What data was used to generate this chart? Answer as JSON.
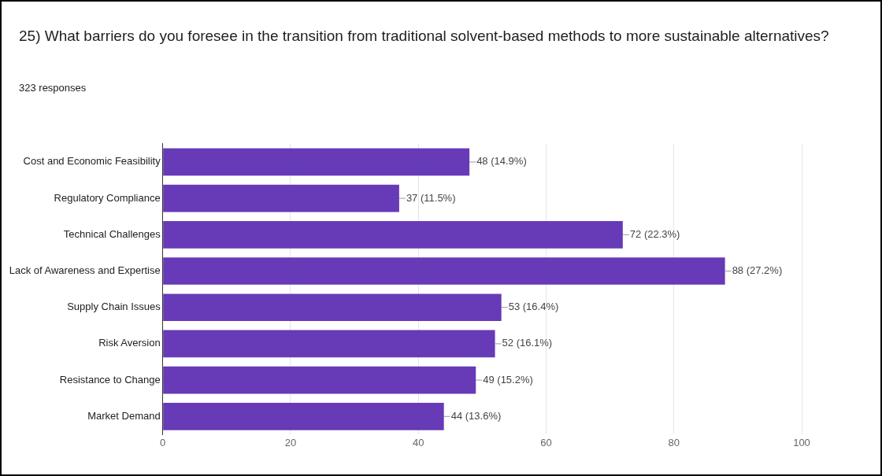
{
  "chart_data": {
    "type": "bar",
    "orientation": "horizontal",
    "title": "25) What barriers do you foresee in the transition from traditional solvent-based methods to more sustainable alternatives?",
    "subtitle": "323 responses",
    "categories": [
      "Cost and Economic Feasibility",
      "Regulatory Compliance",
      "Technical Challenges",
      "Lack of Awareness and Expertise",
      "Supply Chain Issues",
      "Risk Aversion",
      "Resistance to Change",
      "Market Demand"
    ],
    "values": [
      48,
      37,
      72,
      88,
      53,
      52,
      49,
      44
    ],
    "value_labels": [
      "48 (14.9%)",
      "37 (11.5%)",
      "72 (22.3%)",
      "88 (27.2%)",
      "53 (16.4%)",
      "52 (16.1%)",
      "49 (15.2%)",
      "44 (13.6%)"
    ],
    "color": "#673ab7",
    "xlim": [
      0,
      100
    ],
    "xticks": [
      0,
      20,
      40,
      60,
      80,
      100
    ],
    "grid": "x",
    "legend": false
  }
}
